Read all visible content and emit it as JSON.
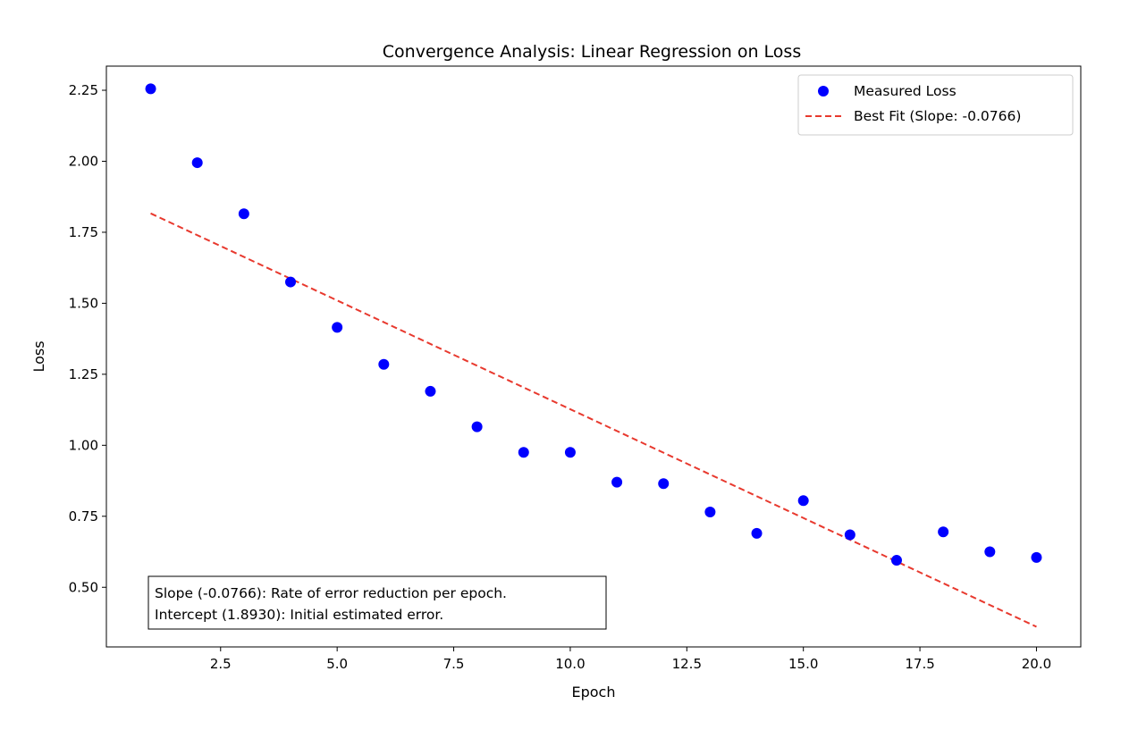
{
  "chart_data": {
    "type": "scatter",
    "title": "Convergence Analysis: Linear Regression on Loss",
    "xlabel": "Epoch",
    "ylabel": "Loss",
    "xlim": [
      0.05,
      20.95
    ],
    "ylim": [
      0.29,
      2.335
    ],
    "xticks": [
      2.5,
      5.0,
      7.5,
      10.0,
      12.5,
      15.0,
      17.5,
      20.0
    ],
    "xtick_labels": [
      "2.5",
      "5.0",
      "7.5",
      "10.0",
      "12.5",
      "15.0",
      "17.5",
      "20.0"
    ],
    "yticks": [
      0.5,
      0.75,
      1.0,
      1.25,
      1.5,
      1.75,
      2.0,
      2.25
    ],
    "ytick_labels": [
      "0.50",
      "0.75",
      "1.00",
      "1.25",
      "1.50",
      "1.75",
      "2.00",
      "2.25"
    ],
    "grid": false,
    "series": [
      {
        "name": "Measured Loss",
        "kind": "scatter",
        "color": "#0000ff",
        "x": [
          1,
          2,
          3,
          4,
          5,
          6,
          7,
          8,
          9,
          10,
          11,
          12,
          13,
          14,
          15,
          16,
          17,
          18,
          19,
          20
        ],
        "y": [
          2.255,
          1.995,
          1.815,
          1.575,
          1.415,
          1.285,
          1.19,
          1.065,
          0.975,
          0.975,
          0.87,
          0.865,
          0.765,
          0.69,
          0.805,
          0.685,
          0.595,
          0.695,
          0.625,
          0.605
        ]
      },
      {
        "name": "Best Fit (Slope: -0.0766)",
        "kind": "line",
        "style": "dashed",
        "color": "#e8392e",
        "slope": -0.0766,
        "intercept": 1.893,
        "x": [
          1,
          20
        ]
      }
    ],
    "legend": {
      "position": "top-right",
      "entries": [
        "Measured Loss",
        "Best Fit (Slope: -0.0766)"
      ]
    },
    "annotation": {
      "position": "bottom-left",
      "lines": [
        "Slope (-0.0766): Rate of error reduction per epoch.",
        "Intercept (1.8930): Initial estimated error."
      ]
    }
  }
}
